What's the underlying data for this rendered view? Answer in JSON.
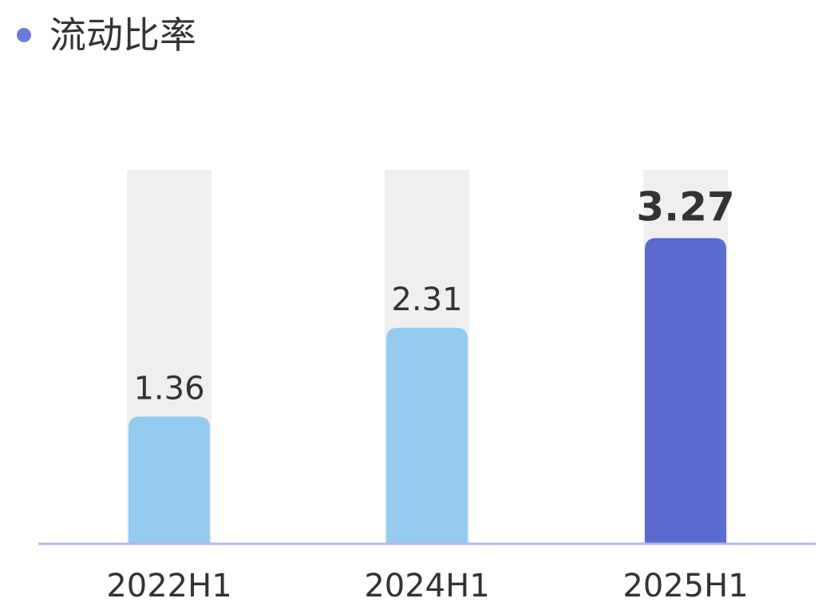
{
  "chart_data": {
    "type": "bar",
    "title": "流动比率",
    "categories": [
      "2022H1",
      "2024H1",
      "2025H1"
    ],
    "values": [
      1.36,
      2.31,
      3.27
    ],
    "value_labels": [
      "1.36",
      "2.31",
      "3.27"
    ],
    "ylim": [
      0,
      4
    ],
    "grid": false,
    "highlight_index": 2,
    "colors": {
      "bar": "#95cbef",
      "highlight_bar": "#5c6bd0",
      "track": "#efefef",
      "axis": "#b3b8ea",
      "title_dot": "#6b7bd4",
      "text": "#333333"
    }
  }
}
